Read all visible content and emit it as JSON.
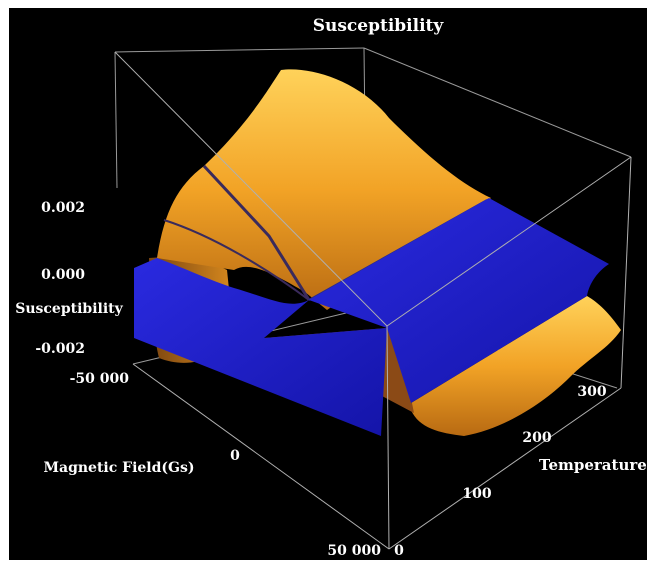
{
  "chart_data": {
    "type": "surface3d",
    "title": "Susceptibility",
    "xlabel": "Magnetic Field(Gs)",
    "ylabel": "Temperature",
    "zlabel": "Susceptibility",
    "x_ticks": [
      "-50 000",
      "0",
      "50 000"
    ],
    "y_ticks": [
      "0",
      "100",
      "200",
      "300"
    ],
    "z_ticks": [
      "0.002",
      "0.000",
      "-0.002"
    ],
    "xlim": [
      -50000,
      50000
    ],
    "ylim": [
      0,
      350
    ],
    "zlim": [
      -0.0025,
      0.0032
    ],
    "series": [
      {
        "surface": "orange",
        "color": "#f0a020",
        "z_at_field_0": [
          {
            "temperature": 0,
            "value": 0.003
          },
          {
            "temperature": 100,
            "value": 0.0021
          },
          {
            "temperature": 200,
            "value": 0.0008
          },
          {
            "temperature": 300,
            "value": 0.0002
          }
        ],
        "z_at_field_pm50000": [
          {
            "temperature": 0,
            "value": -0.002
          },
          {
            "temperature": 100,
            "value": -0.0012
          },
          {
            "temperature": 200,
            "value": -0.0014
          },
          {
            "temperature": 300,
            "value": -0.001
          }
        ]
      },
      {
        "surface": "blue",
        "color": "#1c1ccf",
        "value": 0.0
      }
    ],
    "grid": false
  }
}
